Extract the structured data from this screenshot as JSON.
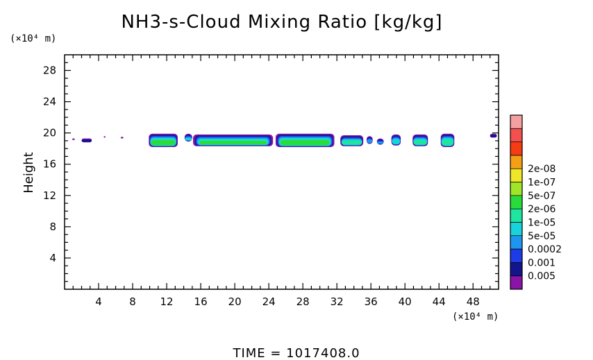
{
  "chart_data": {
    "type": "heatmap",
    "title": "NH3-s-Cloud Mixing Ratio [kg/kg]",
    "ylabel": "Height",
    "x_unit": "(×10⁴ m)",
    "y_unit": "(×10⁴ m)",
    "xlim": [
      0,
      51
    ],
    "ylim": [
      0,
      30
    ],
    "x_ticks": [
      4,
      8,
      12,
      16,
      20,
      24,
      28,
      32,
      36,
      40,
      44,
      48
    ],
    "y_ticks": [
      4,
      8,
      12,
      16,
      20,
      24,
      28
    ],
    "footer": "TIME  =  1017408.0",
    "colorbar": {
      "colors": [
        "#8a14a8",
        "#14148c",
        "#1e3ce6",
        "#1e96f0",
        "#18d2dc",
        "#1ee6a0",
        "#28dc3c",
        "#a0e628",
        "#f0e628",
        "#f5a014",
        "#f53c14",
        "#f55050",
        "#f5a0a0"
      ],
      "labels": [
        "2e-08",
        "1e-07",
        "5e-07",
        "2e-06",
        "1e-05",
        "5e-05",
        "0.0002",
        "0.001",
        "0.005"
      ]
    },
    "cloud_cells": [
      {
        "x0": 0.9,
        "x1": 1.2,
        "ybot": 19.1,
        "ytop": 19.3,
        "max": 0
      },
      {
        "x0": 2.0,
        "x1": 3.2,
        "ybot": 18.8,
        "ytop": 19.3,
        "max": 1
      },
      {
        "x0": 4.6,
        "x1": 4.8,
        "ybot": 19.4,
        "ytop": 19.6,
        "max": 0
      },
      {
        "x0": 6.6,
        "x1": 6.9,
        "ybot": 19.3,
        "ytop": 19.5,
        "max": 0
      },
      {
        "x0": 9.9,
        "x1": 13.3,
        "ybot": 18.2,
        "ytop": 19.9,
        "max": 6
      },
      {
        "x0": 14.1,
        "x1": 15.0,
        "ybot": 18.9,
        "ytop": 19.9,
        "max": 4
      },
      {
        "x0": 15.1,
        "x1": 24.5,
        "ybot": 18.3,
        "ytop": 19.8,
        "max": 6
      },
      {
        "x0": 24.8,
        "x1": 31.7,
        "ybot": 18.2,
        "ytop": 19.9,
        "max": 6
      },
      {
        "x0": 32.4,
        "x1": 35.1,
        "ybot": 18.3,
        "ytop": 19.7,
        "max": 5
      },
      {
        "x0": 35.5,
        "x1": 36.2,
        "ybot": 18.6,
        "ytop": 19.6,
        "max": 3
      },
      {
        "x0": 36.7,
        "x1": 37.5,
        "ybot": 18.5,
        "ytop": 19.3,
        "max": 3
      },
      {
        "x0": 38.4,
        "x1": 39.5,
        "ybot": 18.4,
        "ytop": 19.8,
        "max": 4
      },
      {
        "x0": 40.9,
        "x1": 42.7,
        "ybot": 18.3,
        "ytop": 19.8,
        "max": 5
      },
      {
        "x0": 44.2,
        "x1": 45.8,
        "ybot": 18.2,
        "ytop": 19.9,
        "max": 5
      },
      {
        "x0": 50.0,
        "x1": 50.8,
        "ybot": 19.4,
        "ytop": 19.9,
        "max": 1
      }
    ]
  }
}
